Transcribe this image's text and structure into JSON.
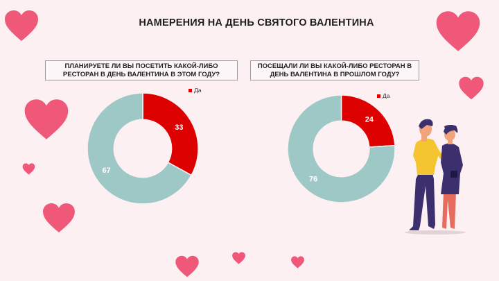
{
  "title": "НАМЕРЕНИЯ НА ДЕНЬ СВЯТОГО ВАЛЕНТИНА",
  "colors": {
    "yes": "#dc0000",
    "no": "#9ec8c6",
    "heart": "#f0587a",
    "background": "#fcf0f3"
  },
  "chart_data": [
    {
      "type": "pie",
      "title": "ПЛАНИРУЕТЕ ЛИ ВЫ ПОСЕТИТЬ КАКОЙ-ЛИБО РЕСТОРАН В ДЕНЬ ВАЛЕНТИНА В ЭТОМ ГОДУ?",
      "legend": [
        "Да"
      ],
      "legend_position": "top-right",
      "values": [
        33,
        67
      ],
      "value_labels": [
        "33",
        "67"
      ],
      "donut": true
    },
    {
      "type": "pie",
      "title": "ПОСЕЩАЛИ ЛИ ВЫ КАКОЙ-ЛИБО РЕСТОРАН В ДЕНЬ ВАЛЕНТИНА В ПРОШЛОМ ГОДУ?",
      "legend": [
        "Да"
      ],
      "legend_position": "top-right",
      "values": [
        24,
        76
      ],
      "value_labels": [
        "24",
        "76"
      ],
      "donut": true
    }
  ]
}
